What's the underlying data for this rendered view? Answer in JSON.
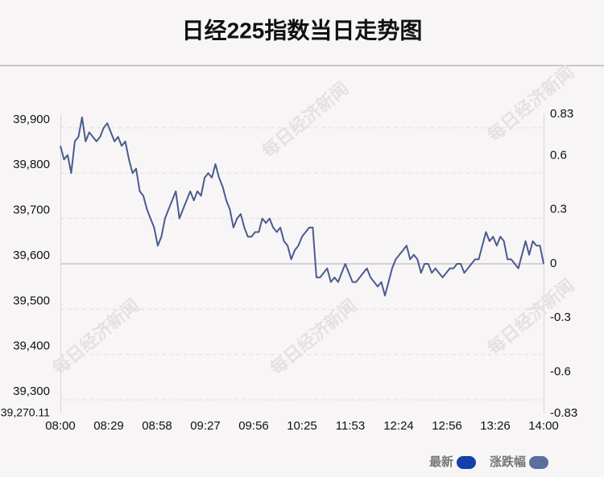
{
  "chart_data": {
    "type": "line",
    "title": "日经225指数当日走势图",
    "watermark": "每日经济新闻",
    "xticks": [
      "08:00",
      "08:29",
      "08:58",
      "09:27",
      "09:56",
      "10:25",
      "11:53",
      "12:24",
      "12:56",
      "13:26",
      "14:00"
    ],
    "ylim": [
      39270.11,
      39929.89
    ],
    "yticks": [
      {
        "value": 39270.11,
        "label": "39,270.11"
      },
      {
        "value": 39300,
        "label": "39,300"
      },
      {
        "value": 39400,
        "label": "39,400"
      },
      {
        "value": 39500,
        "label": "39,500"
      },
      {
        "value": 39600,
        "label": "39,600"
      },
      {
        "value": 39700,
        "label": "39,700"
      },
      {
        "value": 39800,
        "label": "39,800"
      },
      {
        "value": 39900,
        "label": "39,900"
      }
    ],
    "y2lim": [
      -0.83,
      0.83
    ],
    "y2ticks": [
      -0.83,
      -0.6,
      -0.3,
      0,
      0.3,
      0.6,
      0.83
    ],
    "grid": true,
    "legend": [
      {
        "name": "最新",
        "color": "#1440a8"
      },
      {
        "name": "涨跌幅",
        "color": "#5b6f9e"
      }
    ],
    "series": [
      {
        "color": "#4a5c8c",
        "values": [
          39860,
          39830,
          39840,
          39800,
          39870,
          39880,
          39923,
          39870,
          39890,
          39880,
          39870,
          39880,
          39900,
          39910,
          39890,
          39870,
          39880,
          39860,
          39870,
          39830,
          39800,
          39810,
          39760,
          39750,
          39720,
          39700,
          39680,
          39640,
          39660,
          39700,
          39720,
          39740,
          39760,
          39700,
          39720,
          39740,
          39760,
          39740,
          39760,
          39750,
          39790,
          39800,
          39790,
          39820,
          39790,
          39770,
          39740,
          39720,
          39680,
          39700,
          39710,
          39680,
          39660,
          39660,
          39670,
          39670,
          39700,
          39690,
          39700,
          39680,
          39670,
          39680,
          39650,
          39640,
          39610,
          39630,
          39640,
          39660,
          39670,
          39680,
          39680,
          39570,
          39570,
          39580,
          39590,
          39560,
          39570,
          39560,
          39580,
          39600,
          39580,
          39560,
          39560,
          39570,
          39580,
          39590,
          39570,
          39560,
          39550,
          39560,
          39530,
          39560,
          39590,
          39610,
          39620,
          39630,
          39640,
          39610,
          39620,
          39610,
          39580,
          39600,
          39600,
          39580,
          39590,
          39580,
          39570,
          39580,
          39590,
          39590,
          39600,
          39600,
          39580,
          39590,
          39600,
          39610,
          39610,
          39640,
          39670,
          39650,
          39660,
          39640,
          39660,
          39650,
          39610,
          39610,
          39600,
          39590,
          39620,
          39650,
          39620,
          39650,
          39640,
          39640,
          39600
        ]
      }
    ]
  }
}
